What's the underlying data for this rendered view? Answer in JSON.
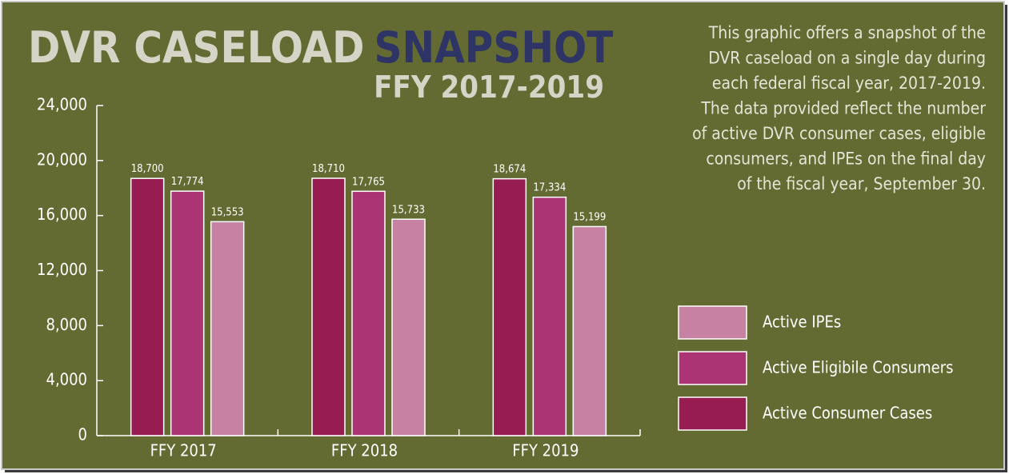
{
  "chart_data": {
    "type": "bar",
    "title": "DVR CASELOAD",
    "title_highlight": "SNAPSHOT",
    "subtitle": "FFY 2017-2019",
    "description": [
      "This graphic offers a snapshot of the",
      "DVR caseload on a single day during",
      "each federal fiscal year, 2017-2019.",
      "The data provided reflect the number",
      "of active DVR consumer cases, eligible",
      "consumers, and IPEs on the final day",
      "of the fiscal year, September 30."
    ],
    "categories": [
      "FFY 2017",
      "FFY 2018",
      "FFY 2019"
    ],
    "series": [
      {
        "name": "Active Consumer Cases",
        "color": "#961c52",
        "values": [
          18700,
          18710,
          18674
        ],
        "value_labels": [
          "18,700",
          "18,710",
          "18,674"
        ]
      },
      {
        "name": "Active Eligibile Consumers",
        "color": "#ab3574",
        "values": [
          17774,
          17765,
          17334
        ],
        "value_labels": [
          "17,774",
          "17,765",
          "17,334"
        ]
      },
      {
        "name": "Active IPEs",
        "color": "#c681a3",
        "values": [
          15553,
          15733,
          15199
        ],
        "value_labels": [
          "15,553",
          "15,733",
          "15,199"
        ]
      }
    ],
    "ylim": [
      0,
      24000
    ],
    "yticks": [
      0,
      {
        "value": 4000,
        "label": "4,000"
      },
      {
        "value": 8000,
        "label": "8,000"
      },
      {
        "value": 12000,
        "label": "12,000"
      },
      {
        "value": 16000,
        "label": "16,000"
      },
      {
        "value": 20000,
        "label": "20,000"
      },
      {
        "value": 24000,
        "label": "24,000"
      }
    ],
    "legend": "right"
  }
}
